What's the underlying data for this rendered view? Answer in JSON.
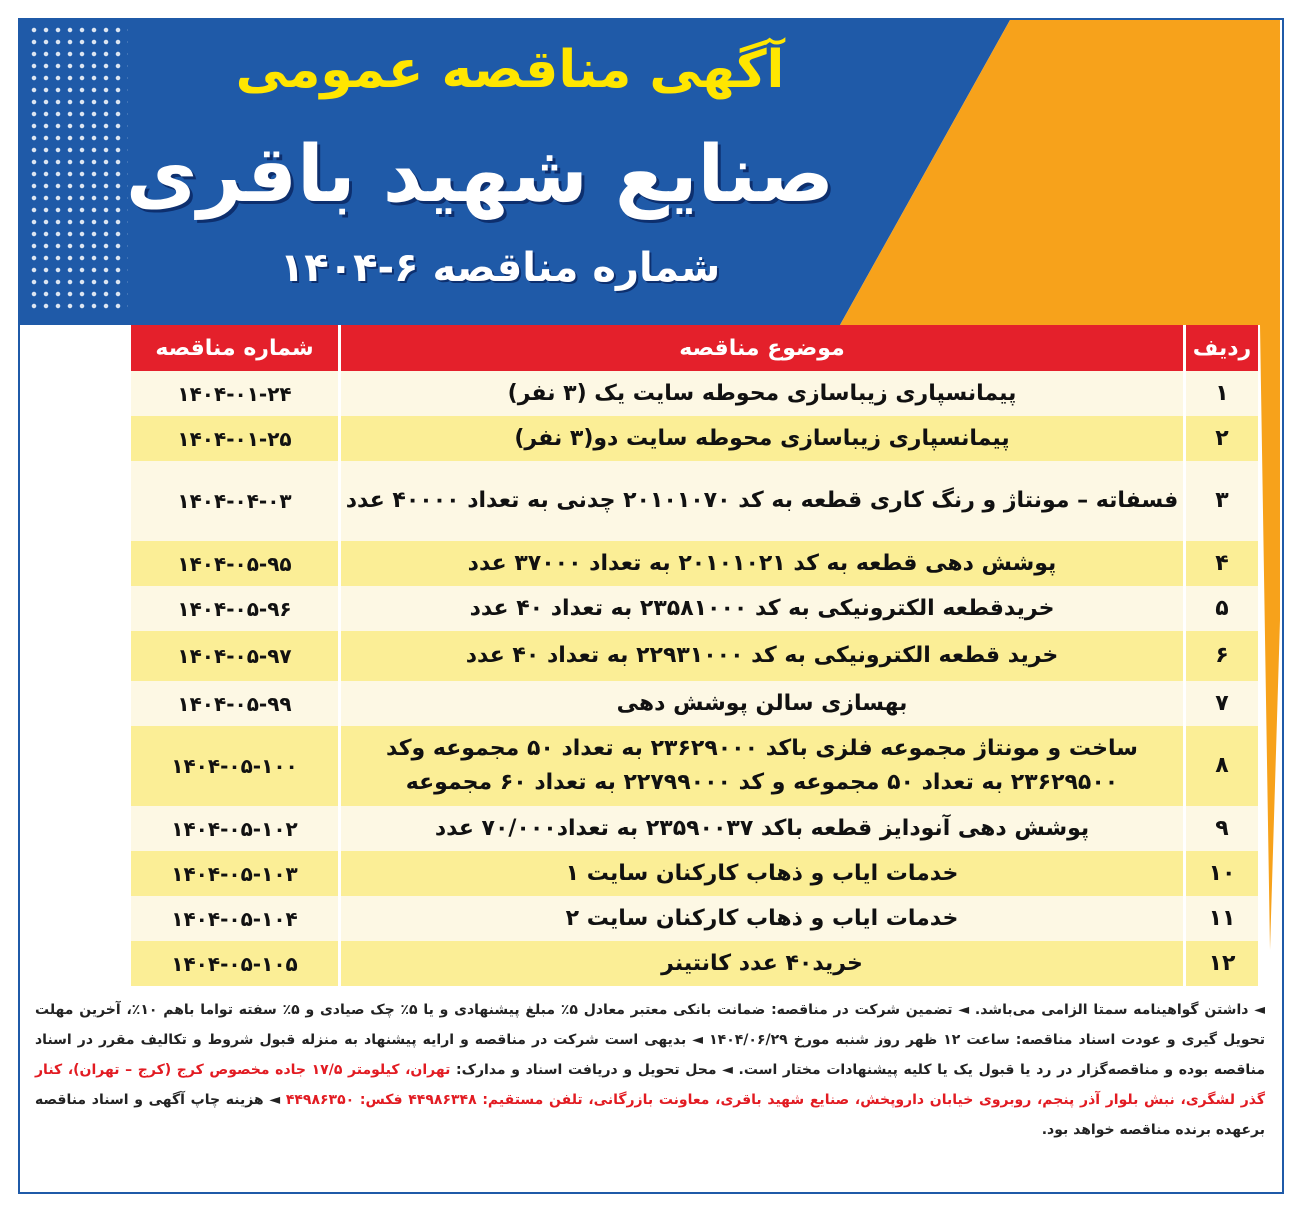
{
  "header": {
    "pre_title": "آگهی مناقصه عمومی",
    "company": "صنایع شهید باقری",
    "tender_number": "شماره مناقصه ۶-۱۴۰۴"
  },
  "colors": {
    "blue": "#1f5aa8",
    "orange": "#f7a21b",
    "red": "#e4202b",
    "yellow": "#ffe600"
  },
  "table": {
    "headers": {
      "row": "ردیف",
      "subject": "موضوع مناقصه",
      "number": "شماره مناقصه"
    },
    "rows": [
      {
        "n": "۱",
        "subject": "پیمانسپاری زیباسازی محوطه سایت یک (۳ نفر)",
        "code": "۱۴۰۴-۰۱-۲۴"
      },
      {
        "n": "۲",
        "subject": "پیمانسپاری زیباسازی محوطه سایت دو(۳ نفر)",
        "code": "۱۴۰۴-۰۱-۲۵"
      },
      {
        "n": "۳",
        "subject": "فسفاته – مونتاژ و رنگ کاری قطعه به کد ۲۰۱۰۱۰۷۰ چدنی به تعداد ۴۰۰۰۰ عدد",
        "code": "۱۴۰۴-۰۴-۰۳"
      },
      {
        "n": "۴",
        "subject": "پوشش دهی قطعه به کد ۲۰۱۰۱۰۲۱ به تعداد ۳۷۰۰۰ عدد",
        "code": "۱۴۰۴-۰۵-۹۵"
      },
      {
        "n": "۵",
        "subject": "خریدقطعه الکترونیکی به کد ۲۳۵۸۱۰۰۰ به تعداد ۴۰ عدد",
        "code": "۱۴۰۴-۰۵-۹۶"
      },
      {
        "n": "۶",
        "subject": "خرید قطعه الکترونیکی به کد ۲۲۹۳۱۰۰۰ به تعداد ۴۰ عدد",
        "code": "۱۴۰۴-۰۵-۹۷"
      },
      {
        "n": "۷",
        "subject": "بهسازی سالن پوشش دهی",
        "code": "۱۴۰۴-۰۵-۹۹"
      },
      {
        "n": "۸",
        "subject": "ساخت و مونتاژ مجموعه فلزی باکد ۲۳۶۲۹۰۰۰ به تعداد ۵۰ مجموعه وکد ۲۳۶۲۹۵۰۰ به تعداد ۵۰ مجموعه و کد ۲۲۷۹۹۰۰۰ به تعداد ۶۰ مجموعه",
        "code": "۱۴۰۴-۰۵-۱۰۰"
      },
      {
        "n": "۹",
        "subject": "پوشش دهی آنودایز قطعه باکد ۲۳۵۹۰۰۳۷ به تعداد۷۰/۰۰۰ عدد",
        "code": "۱۴۰۴-۰۵-۱۰۲"
      },
      {
        "n": "۱۰",
        "subject": "خدمات ایاب و ذهاب کارکنان سایت ۱",
        "code": "۱۴۰۴-۰۵-۱۰۳"
      },
      {
        "n": "۱۱",
        "subject": "خدمات ایاب و ذهاب کارکنان سایت ۲",
        "code": "۱۴۰۴-۰۵-۱۰۴"
      },
      {
        "n": "۱۲",
        "subject": "خرید۴۰ عدد کانتینر",
        "code": "۱۴۰۴-۰۵-۱۰۵"
      }
    ]
  },
  "footer": {
    "p1": "◄ داشتن گواهینامه سمتا الزامی می‌باشد. ◄ تضمین شرکت در مناقصه: ضمانت بانکی معتبر معادل ۵٪ مبلغ پیشنهادی و یا ۵٪ چک صیادی و ۵٪ سفته تواما باهم ۱۰٪، آخرین مهلت تحویل گیری و عودت اسناد مناقصه: ساعت ۱۲ ظهر روز شنبه مورخ ۱۴۰۴/۰۶/۲۹ ◄ بدیهی است شرکت در مناقصه و ارایه پیشنهاد به منزله قبول شروط و تکالیف مقرر در اسناد مناقصه بوده و مناقصه‌گزار در رد یا قبول یک یا کلیه پیشنهادات مختار است. ◄ محل تحویل و دریافت اسناد و مدارک:",
    "address": "تهران، کیلومتر ۱۷/۵ جاده مخصوص کرج (کرج – تهران)، کنار گذر لشگری، نبش بلوار آذر پنجم، روبروی خیابان داروپخش، صنایع شهید باقری، معاونت بازرگانی، تلفن مستقیم: ۴۴۹۸۶۳۴۸ فکس: ۴۴۹۸۶۳۵۰",
    "p2": "◄ هزینه چاپ آگهی و اسناد مناقصه برعهده برنده مناقصه خواهد بود."
  }
}
